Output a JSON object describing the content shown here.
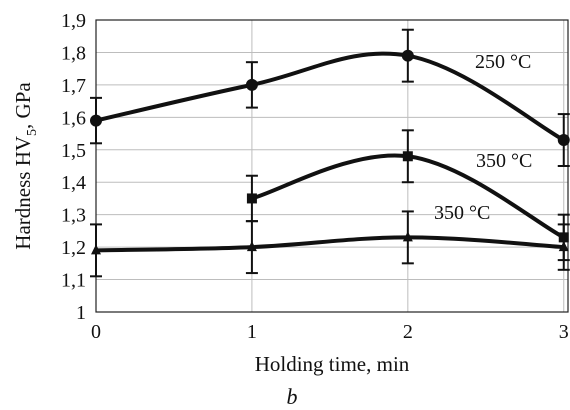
{
  "chart_data": {
    "type": "line",
    "ylabel_main": "Hardness HV",
    "ylabel_sub": "5",
    "ylabel_tail": ", GPa",
    "xlabel": "Holding time, min",
    "panel_label": "b",
    "x_ticks": [
      "0",
      "1",
      "2",
      "3"
    ],
    "y_ticks": [
      "1",
      "1,1",
      "1,2",
      "1,3",
      "1,4",
      "1,5",
      "1,6",
      "1,7",
      "1,8",
      "1,9"
    ],
    "xlim": [
      0,
      3
    ],
    "ylim": [
      1.0,
      1.9
    ],
    "grid": true,
    "series": [
      {
        "name": "250 °C",
        "marker": "circle",
        "x": [
          0,
          1,
          2,
          3
        ],
        "y": [
          1.59,
          1.7,
          1.79,
          1.53
        ],
        "err": [
          0.07,
          0.07,
          0.08,
          0.08
        ]
      },
      {
        "name": "350 °C",
        "marker": "square",
        "x": [
          1,
          2,
          3
        ],
        "y": [
          1.35,
          1.48,
          1.23
        ],
        "err": [
          0.07,
          0.08,
          0.07
        ]
      },
      {
        "name": "350 °C",
        "marker": "triangle",
        "x": [
          0,
          1,
          2,
          3
        ],
        "y": [
          1.19,
          1.2,
          1.23,
          1.2
        ],
        "err": [
          0.08,
          0.08,
          0.08,
          0.07
        ]
      }
    ]
  }
}
